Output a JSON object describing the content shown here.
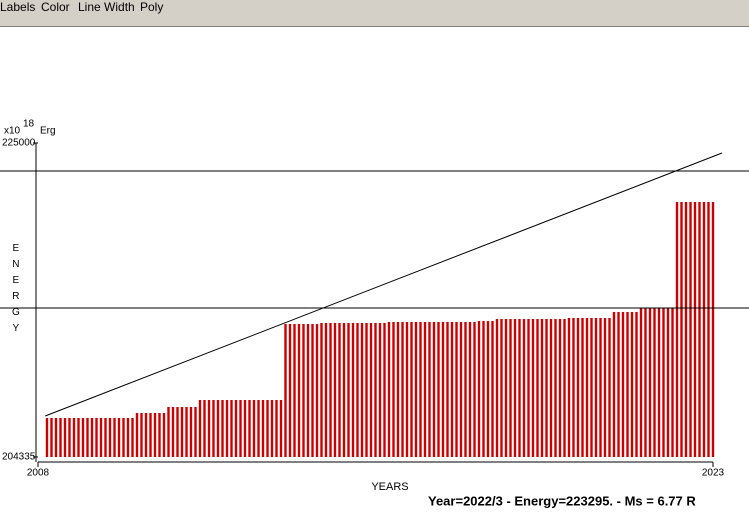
{
  "menu": [
    "Labels",
    "Color",
    "Line Width",
    "Poly"
  ],
  "status": "Year=2022/3 - Energy=223295. - Ms = 6.77 R",
  "chart_data": {
    "type": "bar",
    "x_label": "YEARS",
    "y_label": "ENERGY",
    "y_unit": {
      "base": "x10",
      "exponent": "18",
      "unit": "Erg"
    },
    "xlim": [
      2008,
      2023
    ],
    "xticks": [
      2008,
      2023
    ],
    "ylim": [
      204335,
      225000
    ],
    "yticks": [
      204335,
      225000
    ],
    "color": "#cc0000",
    "x": [
      2008.2,
      2008.3,
      2008.4,
      2008.5,
      2008.6,
      2008.7,
      2008.8,
      2008.9,
      2009.0,
      2009.1,
      2009.2,
      2009.3,
      2009.4,
      2009.5,
      2009.6,
      2009.7,
      2009.8,
      2009.9,
      2010.0,
      2010.1,
      2010.2,
      2010.3,
      2010.4,
      2010.5,
      2010.6,
      2010.7,
      2010.8,
      2010.9,
      2011.0,
      2011.1,
      2011.2,
      2011.3,
      2011.4,
      2011.5,
      2011.6,
      2011.7,
      2011.8,
      2011.9,
      2012.0,
      2012.1,
      2012.2,
      2012.3,
      2012.4,
      2012.5,
      2012.6,
      2012.7,
      2012.8,
      2012.9,
      2013.0,
      2013.1,
      2013.2,
      2013.3,
      2013.4,
      2013.5,
      2013.6,
      2013.7,
      2013.8,
      2013.9,
      2014.0,
      2014.1,
      2014.2,
      2014.3,
      2014.4,
      2014.5,
      2014.6,
      2014.7,
      2014.8,
      2014.9,
      2015.0,
      2015.1,
      2015.2,
      2015.3,
      2015.4,
      2015.5,
      2015.6,
      2015.7,
      2015.8,
      2015.9,
      2016.0,
      2016.1,
      2016.2,
      2016.3,
      2016.4,
      2016.5,
      2016.6,
      2016.7,
      2016.8,
      2016.9,
      2017.0,
      2017.1,
      2017.2,
      2017.3,
      2017.4,
      2017.5,
      2017.6,
      2017.7,
      2017.8,
      2017.9,
      2018.0,
      2018.1,
      2018.2,
      2018.3,
      2018.4,
      2018.5,
      2018.6,
      2018.7,
      2018.8,
      2018.9,
      2019.0,
      2019.1,
      2019.2,
      2019.3,
      2019.4,
      2019.5,
      2019.6,
      2019.7,
      2019.8,
      2019.9,
      2020.0,
      2020.1,
      2020.2,
      2020.3,
      2020.4,
      2020.5,
      2020.6,
      2020.7,
      2020.8,
      2020.9,
      2021.0,
      2021.1,
      2021.2,
      2021.3,
      2021.4,
      2021.5,
      2021.6,
      2021.7,
      2021.8,
      2021.9,
      2022.0,
      2022.1,
      2022.2,
      2022.3,
      2022.4,
      2022.5,
      2022.6,
      2022.7,
      2022.8,
      2022.9,
      2023.0
    ],
    "values": [
      206902,
      206902,
      206902,
      206902,
      206902,
      206902,
      206902,
      206902,
      206902,
      206902,
      206902,
      206902,
      206902,
      206902,
      206902,
      206902,
      206902,
      206902,
      206902,
      206902,
      207231,
      207231,
      207231,
      207231,
      207231,
      207231,
      207231,
      207626,
      207626,
      207626,
      207626,
      207626,
      207626,
      207626,
      208086,
      208086,
      208086,
      208086,
      208086,
      208086,
      208086,
      208086,
      208086,
      208086,
      208086,
      208086,
      208086,
      208086,
      208086,
      208086,
      208086,
      208086,
      208086,
      213088,
      213088,
      213088,
      213088,
      213088,
      213088,
      213088,
      213088,
      213154,
      213154,
      213154,
      213154,
      213154,
      213154,
      213154,
      213154,
      213154,
      213154,
      213154,
      213154,
      213154,
      213154,
      213154,
      213219,
      213219,
      213219,
      213219,
      213219,
      213219,
      213219,
      213219,
      213219,
      213219,
      213219,
      213219,
      213219,
      213219,
      213219,
      213219,
      213219,
      213219,
      213219,
      213219,
      213285,
      213285,
      213285,
      213285,
      213417,
      213417,
      213417,
      213417,
      213417,
      213417,
      213417,
      213417,
      213417,
      213417,
      213417,
      213417,
      213417,
      213417,
      213417,
      213417,
      213483,
      213483,
      213483,
      213483,
      213483,
      213483,
      213483,
      213483,
      213483,
      213483,
      213878,
      213878,
      213878,
      213878,
      213878,
      213878,
      214141,
      214141,
      214141,
      214141,
      214141,
      214141,
      214141,
      214141,
      221117,
      221117,
      221117,
      221117,
      221117,
      221117,
      221117,
      221117,
      221117
    ],
    "trend": {
      "x": [
        2008.16,
        2023.2
      ],
      "values": [
        207033,
        224341
      ],
      "color": "#000000"
    },
    "hlines": [
      223157,
      214141
    ]
  }
}
